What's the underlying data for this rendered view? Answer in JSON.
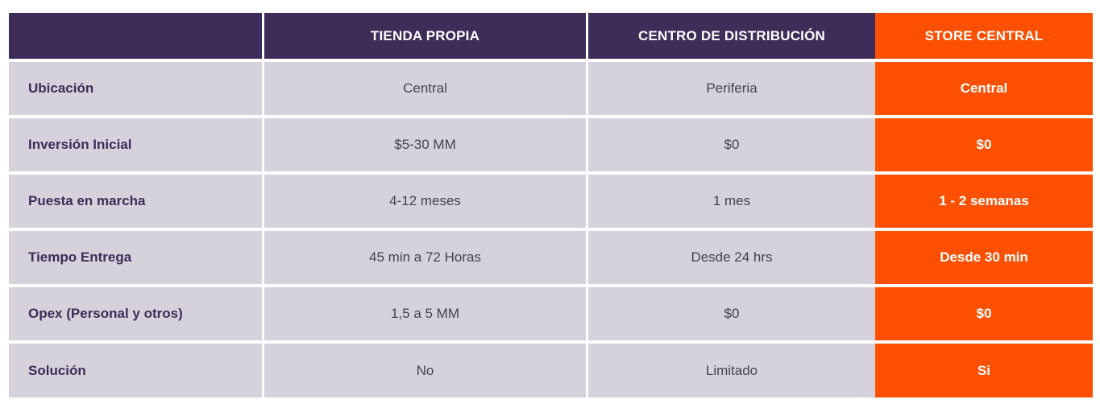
{
  "table": {
    "headers": [
      "",
      "TIENDA PROPIA",
      "CENTRO DE DISTRIBUCIÓN",
      "STORE CENTRAL"
    ],
    "rows": [
      [
        "Ubicación",
        "Central",
        "Periferia",
        "Central"
      ],
      [
        "Inversión Inicial",
        "$5-30 MM",
        "$0",
        "$0"
      ],
      [
        "Puesta en marcha",
        "4-12 meses",
        "1 mes",
        "1 - 2 semanas"
      ],
      [
        "Tiempo Entrega",
        "45 min a 72 Horas",
        "Desde 24 hrs",
        "Desde 30 min"
      ],
      [
        "Opex (Personal y otros)",
        "1,5 a 5 MM",
        "$0",
        "$0"
      ],
      [
        "Solución",
        "No",
        "Limitado",
        "Si"
      ]
    ]
  },
  "colors": {
    "header_bg": "#3e2c59",
    "accent": "#fe5000",
    "cell_bg": "#d5d2dc"
  }
}
